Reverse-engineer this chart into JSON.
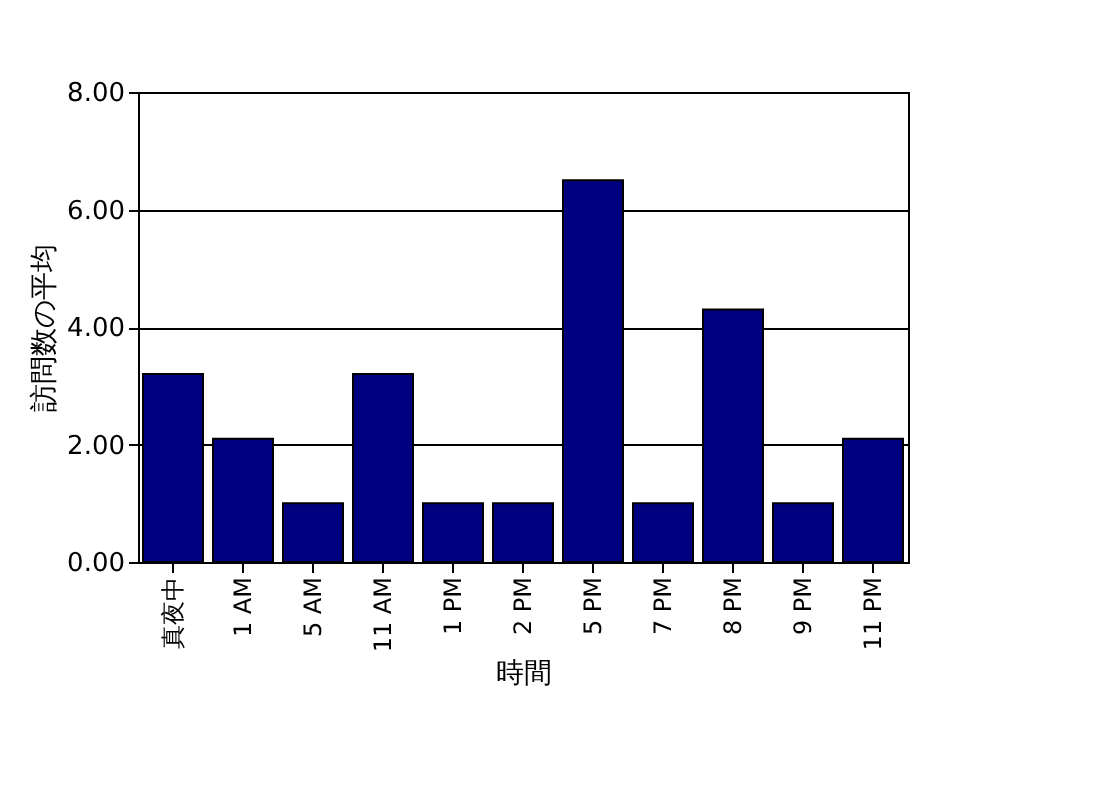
{
  "chart_data": {
    "type": "bar",
    "xlabel": "時間",
    "ylabel": "訪問数の平均",
    "categories": [
      "真夜中",
      "1 AM",
      "5 AM",
      "11 AM",
      "1 PM",
      "2 PM",
      "5 PM",
      "7 PM",
      "8 PM",
      "9 PM",
      "11 PM"
    ],
    "values": [
      3.2,
      2.1,
      1,
      3.2,
      1,
      1,
      6.5,
      1,
      4.3,
      1,
      2.1
    ],
    "color": "#000080",
    "ylim": [
      0,
      8
    ],
    "yticks": [
      {
        "value": 0,
        "label": "0.00"
      },
      {
        "value": 2,
        "label": "2.00"
      },
      {
        "value": 4,
        "label": "4.00"
      },
      {
        "value": 6,
        "label": "6.00"
      },
      {
        "value": 8,
        "label": "8.00"
      }
    ],
    "grid": "y"
  }
}
